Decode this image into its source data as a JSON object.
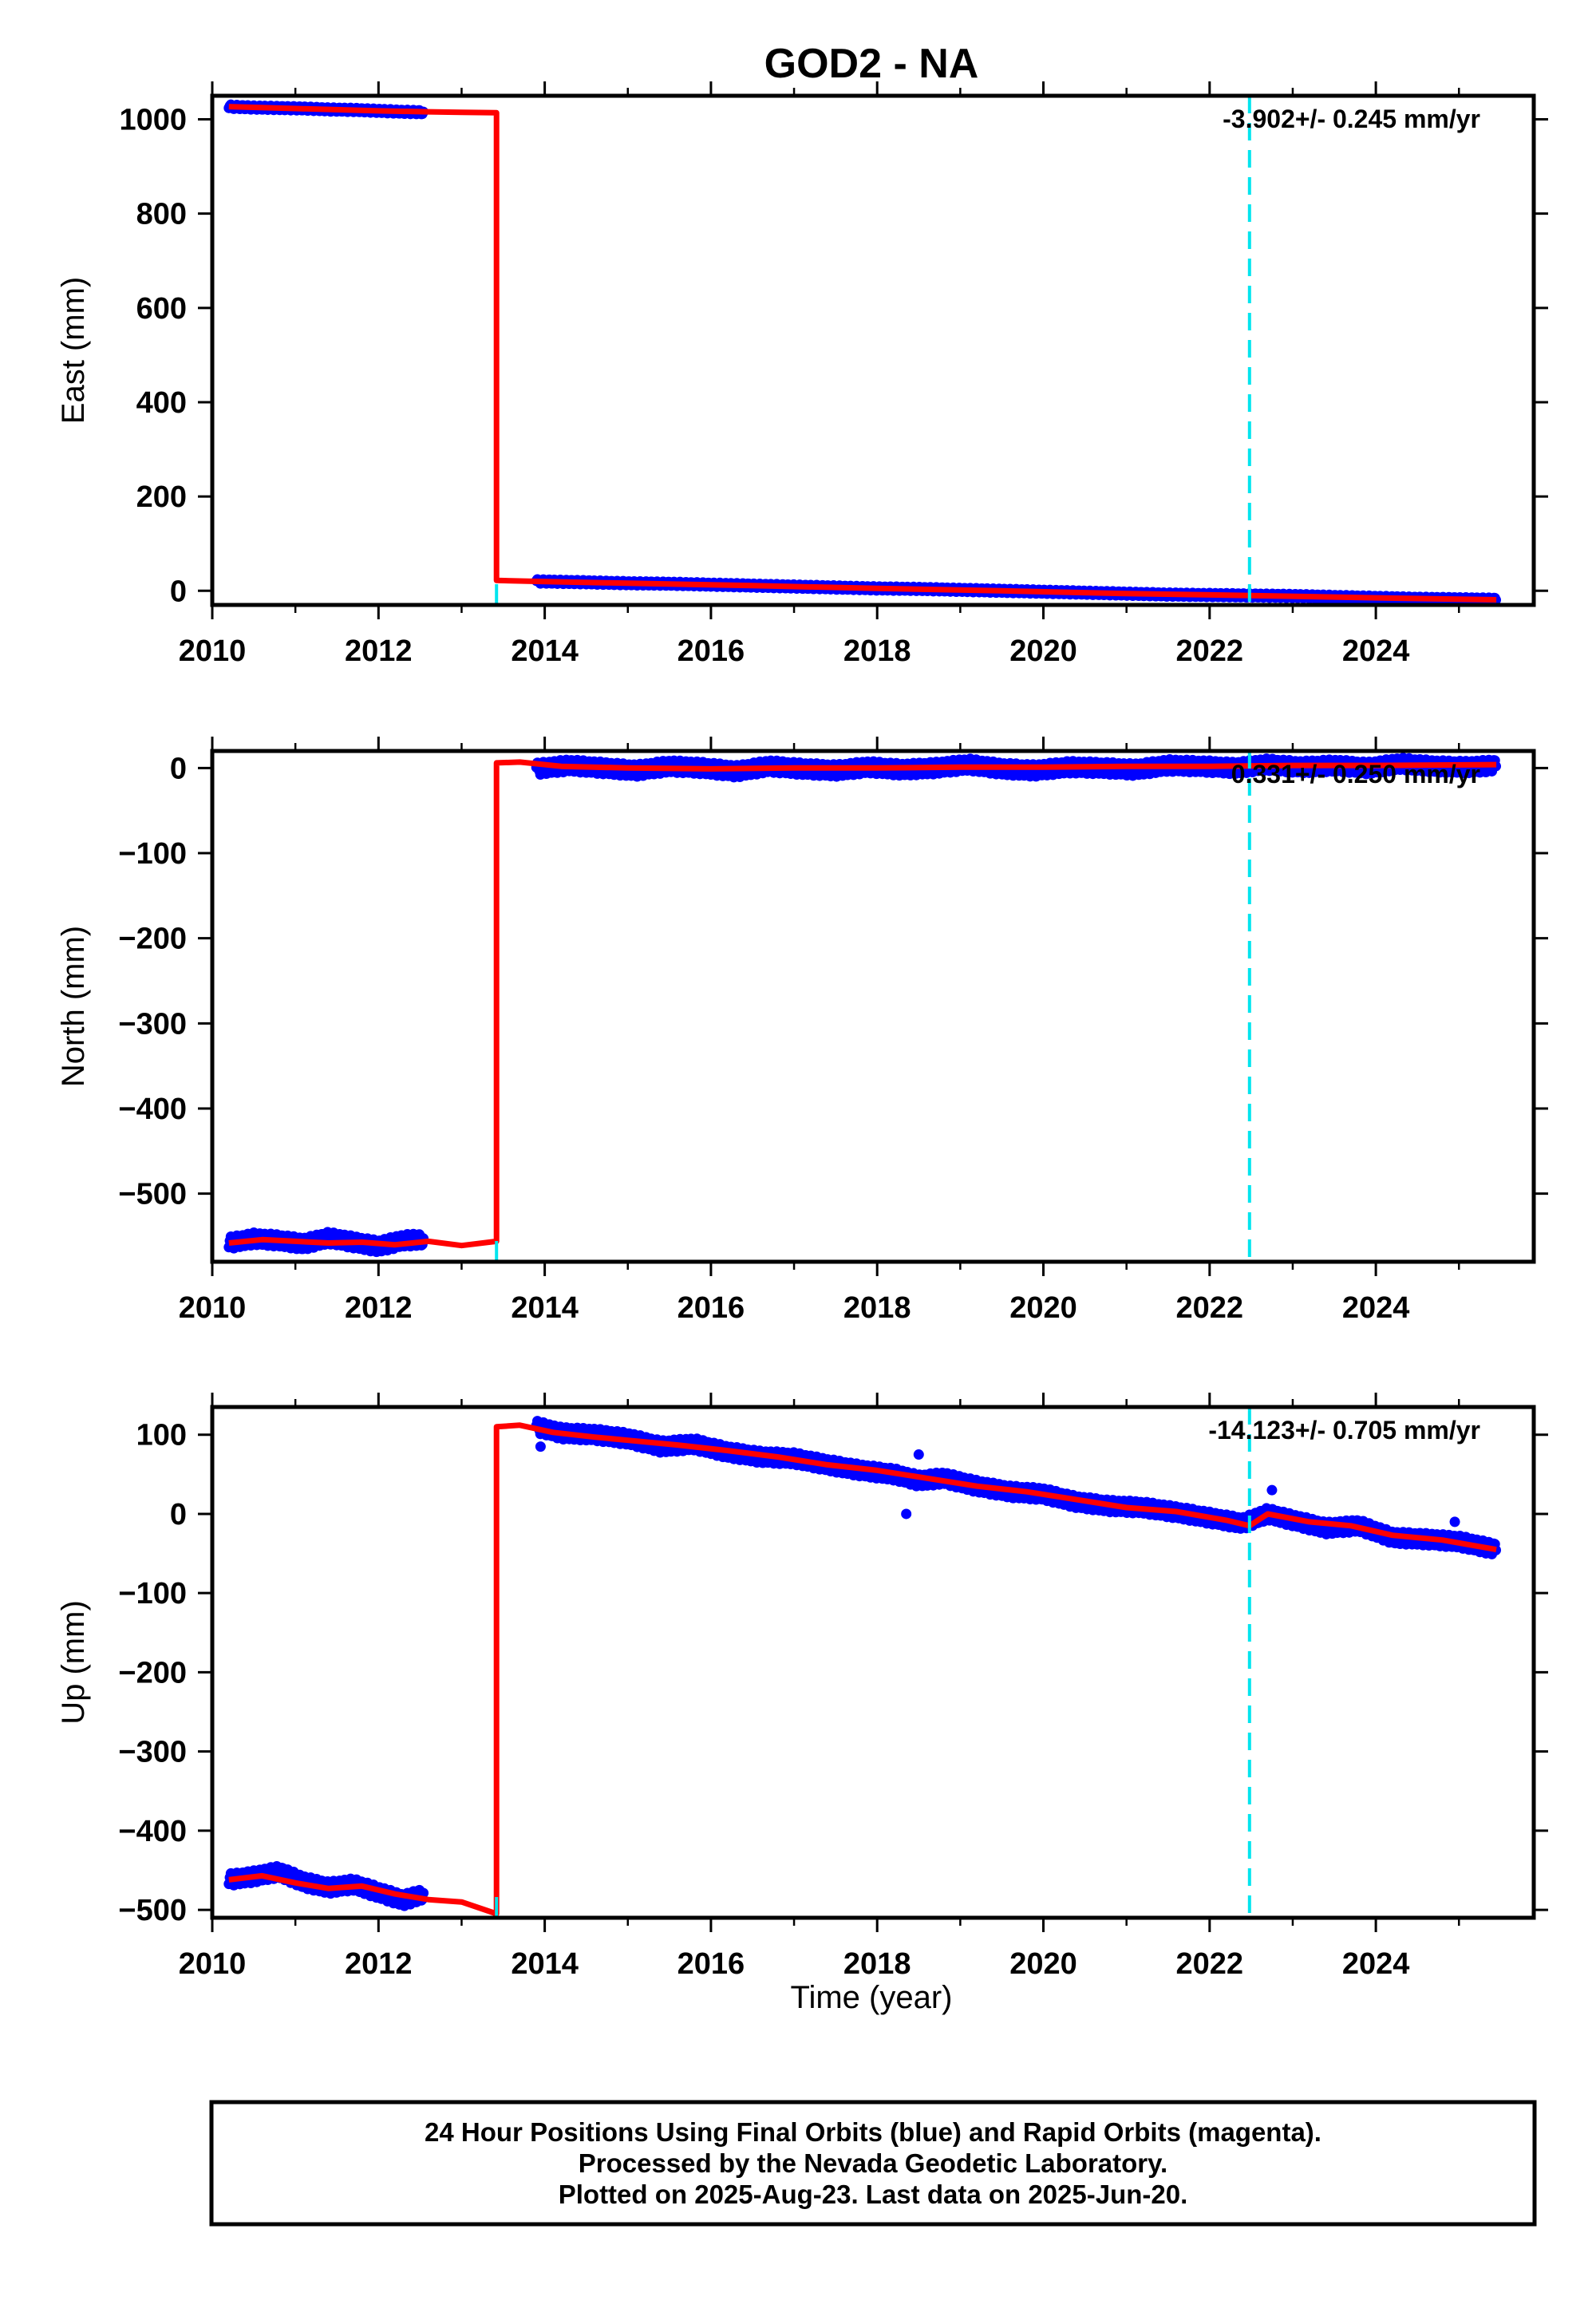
{
  "title": "GOD2 - NA",
  "xlabel": "Time (year)",
  "footer": {
    "line1": "24 Hour Positions Using Final Orbits (blue) and Rapid Orbits (magenta).",
    "line2": "Processed by the Nevada Geodetic Laboratory.",
    "line3": "Plotted on 2025-Aug-23. Last data on 2025-Jun-20."
  },
  "colors": {
    "data": "#0000ff",
    "model": "#ff0000",
    "event_line": "#00e5ee",
    "frame": "#000000"
  },
  "chart_data": [
    {
      "type": "scatter",
      "panel": "east",
      "ylabel": "East (mm)",
      "rate_label": "-3.902+/- 0.245 mm/yr",
      "xlim": [
        2010,
        2025.9
      ],
      "ylim": [
        -30,
        1050
      ],
      "xticks": [
        2010,
        2012,
        2014,
        2016,
        2018,
        2020,
        2022,
        2024
      ],
      "yticks": [
        0,
        200,
        400,
        600,
        800,
        1000
      ],
      "event_lines": [
        2013.42,
        2022.48
      ],
      "series": [
        {
          "segment": 1,
          "x": [
            2010.2,
            2010.5,
            2010.8,
            2011.1,
            2011.4,
            2011.7,
            2012.0,
            2012.3,
            2012.55
          ],
          "y": [
            1027,
            1025,
            1024,
            1023,
            1021,
            1020,
            1018,
            1016,
            1015
          ]
        },
        {
          "segment": 2,
          "x": [
            2013.9,
            2014.5,
            2015.0,
            2015.5,
            2016.0,
            2016.5,
            2017.0,
            2017.5,
            2018.0,
            2018.5,
            2019.0,
            2019.5,
            2020.0,
            2020.5,
            2021.0,
            2021.5,
            2022.0,
            2022.5,
            2023.0,
            2023.5,
            2024.0,
            2024.5,
            2025.0,
            2025.45
          ],
          "y": [
            20,
            18,
            16,
            15,
            13,
            11,
            9,
            7,
            5,
            4,
            2,
            0,
            -2,
            -4,
            -6,
            -8,
            -9,
            -10,
            -11,
            -13,
            -15,
            -17,
            -18,
            -19
          ]
        }
      ],
      "model": {
        "x": [
          2010.2,
          2011.0,
          2012.0,
          2012.6,
          2013.0,
          2013.42,
          2013.42,
          2013.9,
          2015.0,
          2016.5,
          2018.0,
          2019.5,
          2021.0,
          2022.5,
          2024.0,
          2025.45
        ],
        "y": [
          1027,
          1023,
          1018,
          1016,
          1015,
          1014,
          22,
          20,
          16,
          11,
          5,
          0,
          -6,
          -10,
          -15,
          -19
        ]
      }
    },
    {
      "type": "scatter",
      "panel": "north",
      "ylabel": "North (mm)",
      "rate_label": "0.331+/- 0.250 mm/yr",
      "xlim": [
        2010,
        2025.9
      ],
      "ylim": [
        -580,
        20
      ],
      "xticks": [
        2010,
        2012,
        2014,
        2016,
        2018,
        2020,
        2022,
        2024
      ],
      "yticks": [
        0,
        -100,
        -200,
        -300,
        -400,
        -500
      ],
      "event_lines": [
        2013.42,
        2022.48
      ],
      "series": [
        {
          "segment": 1,
          "x": [
            2010.2,
            2010.5,
            2010.8,
            2011.1,
            2011.4,
            2011.7,
            2012.0,
            2012.3,
            2012.55
          ],
          "y": [
            -558,
            -553,
            -555,
            -559,
            -552,
            -557,
            -562,
            -555,
            -554
          ]
        },
        {
          "segment": 2,
          "x": [
            2013.9,
            2014.3,
            2014.7,
            2015.1,
            2015.5,
            2015.9,
            2016.3,
            2016.7,
            2017.1,
            2017.5,
            2017.9,
            2018.3,
            2018.7,
            2019.1,
            2019.5,
            2019.9,
            2020.3,
            2020.7,
            2021.1,
            2021.5,
            2021.9,
            2022.3,
            2022.7,
            2023.1,
            2023.5,
            2023.9,
            2024.3,
            2024.7,
            2025.1,
            2025.45
          ],
          "y": [
            -1,
            3,
            0,
            -3,
            2,
            0,
            -4,
            2,
            -1,
            -3,
            1,
            -2,
            0,
            4,
            -1,
            -3,
            1,
            0,
            -2,
            3,
            2,
            0,
            4,
            1,
            3,
            0,
            5,
            2,
            1,
            3
          ]
        }
      ],
      "model": {
        "x": [
          2010.2,
          2010.6,
          2011.0,
          2011.4,
          2011.8,
          2012.2,
          2012.6,
          2013.0,
          2013.42,
          2013.42,
          2013.7,
          2014.2,
          2015.0,
          2016.0,
          2017.0,
          2018.0,
          2019.0,
          2020.0,
          2021.0,
          2022.0,
          2023.0,
          2024.0,
          2025.45
        ],
        "y": [
          -558,
          -554,
          -556,
          -558,
          -557,
          -560,
          -556,
          -561,
          -556,
          6,
          7,
          2,
          0,
          -1,
          0,
          0,
          1,
          1,
          2,
          2,
          3,
          3,
          4
        ]
      }
    },
    {
      "type": "scatter",
      "panel": "up",
      "ylabel": "Up (mm)",
      "rate_label": "-14.123+/- 0.705 mm/yr",
      "xlim": [
        2010,
        2025.9
      ],
      "ylim": [
        -510,
        135
      ],
      "xticks": [
        2010,
        2012,
        2014,
        2016,
        2018,
        2020,
        2022,
        2024
      ],
      "yticks": [
        100,
        0,
        -100,
        -200,
        -300,
        -400,
        -500
      ],
      "event_lines": [
        2013.42,
        2022.48
      ],
      "series": [
        {
          "segment": 1,
          "x": [
            2010.2,
            2010.5,
            2010.8,
            2011.1,
            2011.4,
            2011.7,
            2012.0,
            2012.3,
            2012.55
          ],
          "y": [
            -462,
            -458,
            -452,
            -465,
            -472,
            -468,
            -478,
            -488,
            -480
          ]
        },
        {
          "segment": 2,
          "x": [
            2013.9,
            2014.2,
            2014.6,
            2015.0,
            2015.4,
            2015.8,
            2016.2,
            2016.6,
            2017.0,
            2017.4,
            2017.8,
            2018.2,
            2018.5,
            2018.8,
            2019.2,
            2019.6,
            2020.0,
            2020.4,
            2020.8,
            2021.2,
            2021.6,
            2022.0,
            2022.4,
            2022.7,
            2023.0,
            2023.4,
            2023.8,
            2024.2,
            2024.6,
            2025.0,
            2025.45
          ],
          "y": [
            110,
            102,
            100,
            95,
            85,
            88,
            78,
            72,
            70,
            62,
            55,
            50,
            42,
            45,
            35,
            28,
            25,
            15,
            10,
            8,
            2,
            -5,
            -12,
            0,
            -8,
            -18,
            -15,
            -30,
            -32,
            -35,
            -45
          ]
        },
        {
          "segment": 3,
          "x": [
            2013.95,
            2018.35,
            2018.5,
            2022.75,
            2024.95
          ],
          "y": [
            85,
            0,
            75,
            30,
            -10
          ]
        }
      ],
      "model": {
        "x": [
          2010.2,
          2010.6,
          2011.0,
          2011.4,
          2011.8,
          2012.2,
          2012.6,
          2013.0,
          2013.42,
          2013.42,
          2013.7,
          2014.1,
          2014.6,
          2015.0,
          2015.6,
          2016.2,
          2016.8,
          2017.4,
          2018.0,
          2018.6,
          2019.2,
          2019.8,
          2020.4,
          2021.0,
          2021.6,
          2022.2,
          2022.48,
          2022.7,
          2023.2,
          2023.7,
          2024.2,
          2024.8,
          2025.45
        ],
        "y": [
          -462,
          -457,
          -466,
          -473,
          -470,
          -480,
          -487,
          -490,
          -505,
          110,
          112,
          103,
          97,
          93,
          87,
          80,
          72,
          62,
          55,
          45,
          35,
          28,
          18,
          8,
          3,
          -8,
          -15,
          0,
          -10,
          -15,
          -27,
          -33,
          -45
        ]
      }
    }
  ]
}
